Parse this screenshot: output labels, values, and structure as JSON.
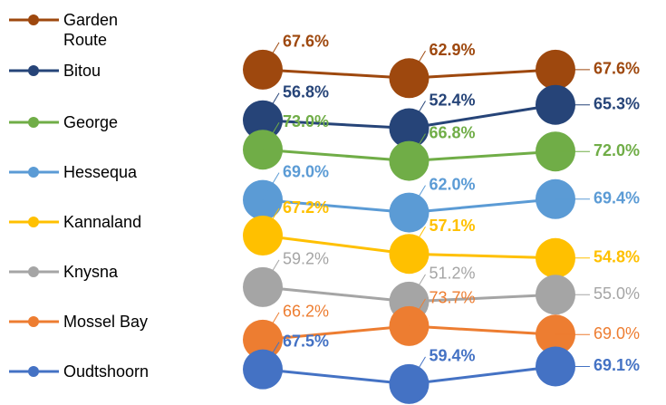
{
  "chart_data": {
    "type": "line",
    "categories": [
      null,
      null,
      null
    ],
    "series": [
      {
        "name": "Garden Route",
        "color": "#9e480e",
        "values": [
          67.6,
          62.9,
          67.6
        ],
        "value_labels": [
          "67.6%",
          "62.9%",
          "67.6%"
        ],
        "bold_labels": true
      },
      {
        "name": "Bitou",
        "color": "#264478",
        "values": [
          56.8,
          52.4,
          65.3
        ],
        "value_labels": [
          "56.8%",
          "52.4%",
          "65.3%"
        ],
        "bold_labels": true
      },
      {
        "name": "George",
        "color": "#70ad47",
        "values": [
          73.0,
          66.8,
          72.0
        ],
        "value_labels": [
          "73.0%",
          "66.8%",
          "72.0%"
        ],
        "bold_labels": true
      },
      {
        "name": "Hessequa",
        "color": "#5b9bd5",
        "values": [
          69.0,
          62.0,
          69.4
        ],
        "value_labels": [
          "69.0%",
          "62.0%",
          "69.4%"
        ],
        "bold_labels": true
      },
      {
        "name": "Kannaland",
        "color": "#ffc000",
        "values": [
          67.2,
          57.1,
          54.8
        ],
        "value_labels": [
          "67.2%",
          "57.1%",
          "54.8%"
        ],
        "bold_labels": true
      },
      {
        "name": "Knysna",
        "color": "#a5a5a5",
        "values": [
          59.2,
          51.2,
          55.0
        ],
        "value_labels": [
          "59.2%",
          "51.2%",
          "55.0%"
        ],
        "bold_labels": false
      },
      {
        "name": "Mossel Bay",
        "color": "#ed7d31",
        "values": [
          66.2,
          73.7,
          69.0
        ],
        "value_labels": [
          "66.2%",
          "73.7%",
          "69.0%"
        ],
        "bold_labels": false
      },
      {
        "name": "Oudtshoorn",
        "color": "#4472c4",
        "values": [
          67.5,
          59.4,
          69.1
        ],
        "value_labels": [
          "67.5%",
          "59.4%",
          "69.1%"
        ],
        "bold_labels": true
      }
    ]
  }
}
